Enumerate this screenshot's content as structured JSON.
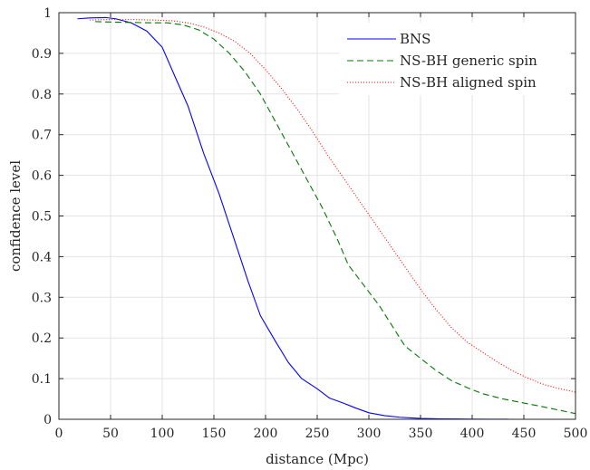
{
  "chart_data": {
    "type": "line",
    "title": "",
    "xlabel": "distance (Mpc)",
    "ylabel": "confidence level",
    "xlim": [
      0,
      500
    ],
    "ylim": [
      0,
      1
    ],
    "xticks": [
      0,
      50,
      100,
      150,
      200,
      250,
      300,
      350,
      400,
      450,
      500
    ],
    "yticks": [
      0,
      0.1,
      0.2,
      0.3,
      0.4,
      0.5,
      0.6,
      0.7,
      0.8,
      0.9,
      1
    ],
    "xtick_labels": [
      "0",
      "50",
      "100",
      "150",
      "200",
      "250",
      "300",
      "350",
      "400",
      "450",
      "500"
    ],
    "ytick_labels": [
      "0",
      "0.1",
      "0.2",
      "0.3",
      "0.4",
      "0.5",
      "0.6",
      "0.7",
      "0.8",
      "0.9",
      "1"
    ],
    "grid": true,
    "legend_position": "top-right",
    "series": [
      {
        "name": "BNS",
        "color": "#0000ff",
        "dash": "solid",
        "x": [
          18,
          30,
          45,
          55,
          70,
          85,
          100,
          112,
          125,
          140,
          155,
          170,
          183,
          195,
          210,
          222,
          235,
          250,
          262,
          275,
          287,
          300,
          315,
          330,
          350,
          370,
          395,
          420,
          435
        ],
        "y": [
          0.985,
          0.987,
          0.988,
          0.985,
          0.975,
          0.955,
          0.915,
          0.845,
          0.77,
          0.655,
          0.555,
          0.44,
          0.34,
          0.255,
          0.19,
          0.14,
          0.1,
          0.075,
          0.052,
          0.04,
          0.028,
          0.016,
          0.009,
          0.005,
          0.002,
          0.001,
          0.0005,
          0.0002,
          0.0001
        ]
      },
      {
        "name": "NS-BH generic spin",
        "color": "#007700",
        "dash": "dashed",
        "x": [
          35,
          50,
          70,
          90,
          105,
          120,
          135,
          150,
          165,
          180,
          195,
          210,
          225,
          240,
          255,
          270,
          280,
          295,
          310,
          325,
          335,
          350,
          365,
          380,
          395,
          410,
          430,
          450,
          470,
          485,
          500
        ],
        "y": [
          0.978,
          0.977,
          0.976,
          0.975,
          0.975,
          0.97,
          0.958,
          0.935,
          0.9,
          0.855,
          0.8,
          0.73,
          0.66,
          0.59,
          0.52,
          0.44,
          0.38,
          0.33,
          0.28,
          0.22,
          0.18,
          0.15,
          0.12,
          0.095,
          0.078,
          0.063,
          0.05,
          0.04,
          0.03,
          0.022,
          0.014
        ]
      },
      {
        "name": "NS-BH aligned spin",
        "color": "#ff0000",
        "dash": "dotted",
        "x": [
          30,
          50,
          70,
          90,
          110,
          125,
          140,
          155,
          170,
          185,
          200,
          215,
          230,
          245,
          260,
          275,
          290,
          305,
          320,
          335,
          350,
          365,
          380,
          395,
          410,
          425,
          440,
          455,
          470,
          485,
          500
        ],
        "y": [
          0.982,
          0.983,
          0.983,
          0.982,
          0.98,
          0.975,
          0.965,
          0.95,
          0.93,
          0.9,
          0.86,
          0.815,
          0.765,
          0.71,
          0.65,
          0.595,
          0.54,
          0.485,
          0.43,
          0.375,
          0.32,
          0.27,
          0.225,
          0.19,
          0.165,
          0.14,
          0.118,
          0.1,
          0.085,
          0.075,
          0.067
        ]
      }
    ]
  }
}
